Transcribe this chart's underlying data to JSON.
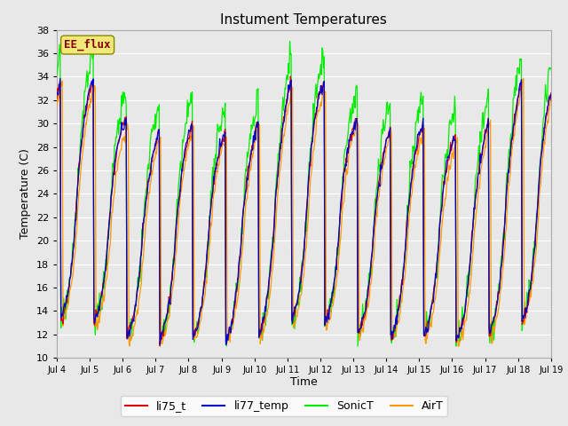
{
  "title": "Instument Temperatures",
  "ylabel": "Temperature (C)",
  "xlabel": "Time",
  "ylim": [
    10,
    38
  ],
  "fig_bg": "#e8e8e8",
  "plot_bg": "#e8e8e8",
  "grid_color": "#ffffff",
  "annotation_text": "EE_flux",
  "annotation_bg": "#f0e878",
  "annotation_border": "#888800",
  "annotation_fg": "#880000",
  "line_colors": [
    "#dd0000",
    "#0000cc",
    "#00ee00",
    "#ff9900"
  ],
  "legend_labels": [
    "li75_t",
    "li77_temp",
    "SonicT",
    "AirT"
  ],
  "xtick_labels": [
    "Jul 4",
    "Jul 5",
    "Jul 6",
    "Jul 7",
    "Jul 8",
    "Jul 9",
    "Jul 10",
    "Jul 11",
    "Jul 12",
    "Jul 13",
    "Jul 14",
    "Jul 15",
    "Jul 16",
    "Jul 17",
    "Jul 18",
    "Jul 19"
  ],
  "yticks": [
    10,
    12,
    14,
    16,
    18,
    20,
    22,
    24,
    26,
    28,
    30,
    32,
    34,
    36,
    38
  ],
  "n_days": 15,
  "n_points": 720
}
